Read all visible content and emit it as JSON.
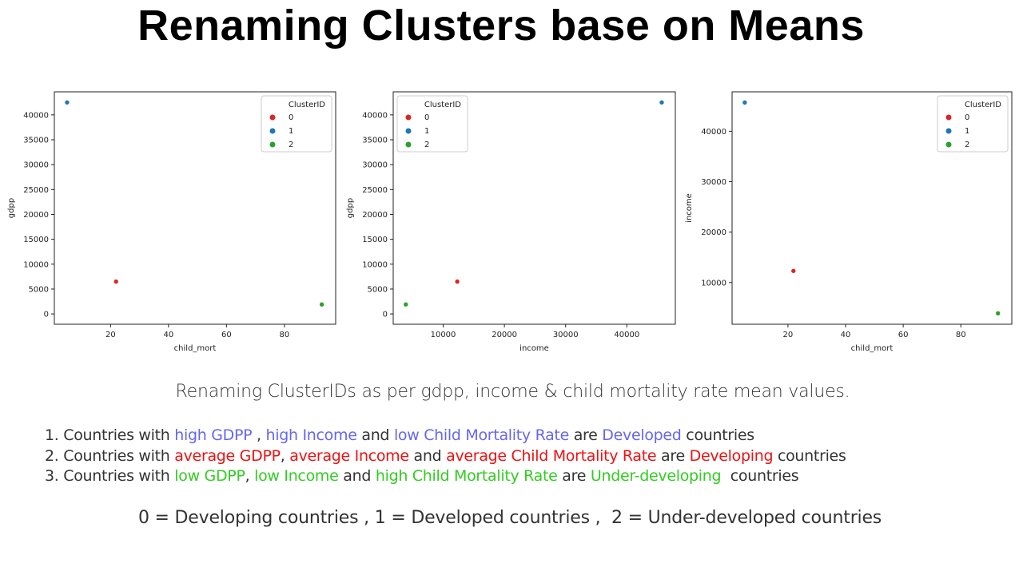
{
  "title": "Renaming Clusters base on Means",
  "subtitle": "Renaming ClusterIDs as per gdpp, income & child mortality rate mean values.",
  "rules": [
    {
      "segments": [
        {
          "text": "1. Countries with ",
          "color": "plain"
        },
        {
          "text": "high GDPP",
          "color": "blue"
        },
        {
          "text": " , ",
          "color": "plain"
        },
        {
          "text": "high Income",
          "color": "blue"
        },
        {
          "text": " and ",
          "color": "plain"
        },
        {
          "text": "low Child Mortality Rate",
          "color": "blue"
        },
        {
          "text": " are ",
          "color": "plain"
        },
        {
          "text": "Developed",
          "color": "blue"
        },
        {
          "text": " countries",
          "color": "plain"
        }
      ]
    },
    {
      "segments": [
        {
          "text": "2. Countries with ",
          "color": "plain"
        },
        {
          "text": "average GDPP",
          "color": "red"
        },
        {
          "text": ", ",
          "color": "plain"
        },
        {
          "text": "average Income",
          "color": "red"
        },
        {
          "text": " and ",
          "color": "plain"
        },
        {
          "text": "average Child Mortality Rate",
          "color": "red"
        },
        {
          "text": " are ",
          "color": "plain"
        },
        {
          "text": "Developing",
          "color": "red"
        },
        {
          "text": " countries",
          "color": "plain"
        }
      ]
    },
    {
      "segments": [
        {
          "text": "3. Countries with ",
          "color": "plain"
        },
        {
          "text": "low GDPP",
          "color": "green"
        },
        {
          "text": ", ",
          "color": "plain"
        },
        {
          "text": "low Income",
          "color": "green"
        },
        {
          "text": " and ",
          "color": "plain"
        },
        {
          "text": "high Child Mortality Rate",
          "color": "green"
        },
        {
          "text": " are ",
          "color": "plain"
        },
        {
          "text": "Under-developing",
          "color": "green"
        },
        {
          "text": "  countries",
          "color": "plain"
        }
      ]
    }
  ],
  "mapping": "0 = Developing countries , 1 = Developed countries ,  2 = Under-developed countries",
  "colors": {
    "cluster_0": "#d62728",
    "cluster_1": "#1f77b4",
    "cluster_2": "#2ca02c"
  },
  "chart_data": [
    {
      "type": "scatter",
      "xlabel": "child_mort",
      "ylabel": "gdpp",
      "xlim": [
        0.6,
        97.7
      ],
      "ylim": [
        -2070,
        44630
      ],
      "xticks": [
        20,
        40,
        60,
        80
      ],
      "yticks": [
        0,
        5000,
        10000,
        15000,
        20000,
        25000,
        30000,
        35000,
        40000
      ],
      "legend": {
        "title": "ClusterID",
        "position": "top-right"
      },
      "series": [
        {
          "name": "0",
          "color": "#d62728",
          "x": [
            21.9
          ],
          "y": [
            6500
          ]
        },
        {
          "name": "1",
          "color": "#1f77b4",
          "x": [
            5.0
          ],
          "y": [
            42500
          ]
        },
        {
          "name": "2",
          "color": "#2ca02c",
          "x": [
            92.9
          ],
          "y": [
            1900
          ]
        }
      ]
    },
    {
      "type": "scatter",
      "xlabel": "income",
      "ylabel": "gdpp",
      "xlim": [
        1840,
        47920
      ],
      "ylim": [
        -2070,
        44630
      ],
      "xticks": [
        10000,
        20000,
        30000,
        40000
      ],
      "yticks": [
        0,
        5000,
        10000,
        15000,
        20000,
        25000,
        30000,
        35000,
        40000
      ],
      "legend": {
        "title": "ClusterID",
        "position": "top-left"
      },
      "series": [
        {
          "name": "0",
          "color": "#d62728",
          "x": [
            12300
          ],
          "y": [
            6500
          ]
        },
        {
          "name": "1",
          "color": "#1f77b4",
          "x": [
            45700
          ],
          "y": [
            42500
          ]
        },
        {
          "name": "2",
          "color": "#2ca02c",
          "x": [
            3900
          ],
          "y": [
            1900
          ]
        }
      ]
    },
    {
      "type": "scatter",
      "xlabel": "child_mort",
      "ylabel": "income",
      "xlim": [
        0.6,
        97.7
      ],
      "ylim": [
        1730,
        47820
      ],
      "xticks": [
        20,
        40,
        60,
        80
      ],
      "yticks": [
        10000,
        20000,
        30000,
        40000
      ],
      "legend": {
        "title": "ClusterID",
        "position": "top-right"
      },
      "series": [
        {
          "name": "0",
          "color": "#d62728",
          "x": [
            21.9
          ],
          "y": [
            12300
          ]
        },
        {
          "name": "1",
          "color": "#1f77b4",
          "x": [
            5.0
          ],
          "y": [
            45700
          ]
        },
        {
          "name": "2",
          "color": "#2ca02c",
          "x": [
            92.9
          ],
          "y": [
            3900
          ]
        }
      ]
    }
  ]
}
